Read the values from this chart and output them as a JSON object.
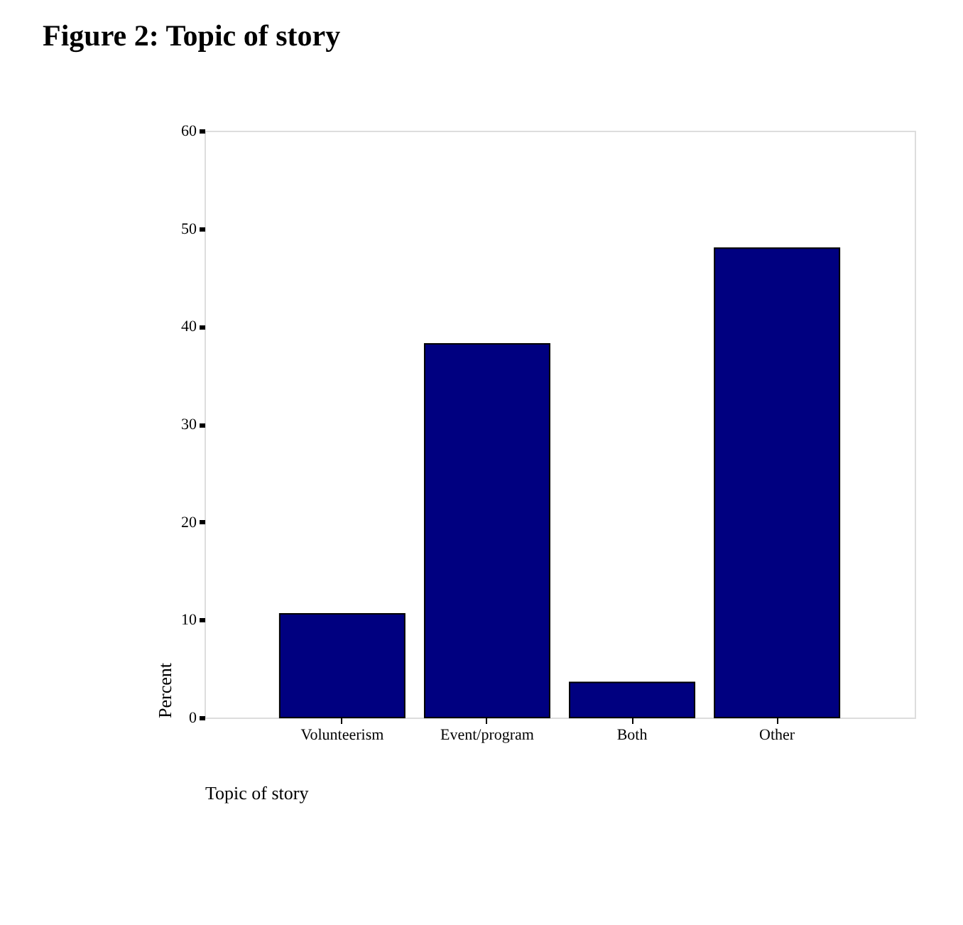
{
  "chart_data": {
    "type": "bar",
    "title": "Figure 2: Topic of story",
    "xlabel": "Topic of story",
    "ylabel": "Percent",
    "categories": [
      "Volunteerism",
      "Event/program",
      "Both",
      "Other"
    ],
    "values": [
      10.6,
      38.2,
      3.6,
      48.0
    ],
    "color": "#000080",
    "ylim": [
      0,
      60
    ],
    "yticks": [
      0,
      10,
      20,
      30,
      40,
      50,
      60
    ],
    "grid": false
  }
}
